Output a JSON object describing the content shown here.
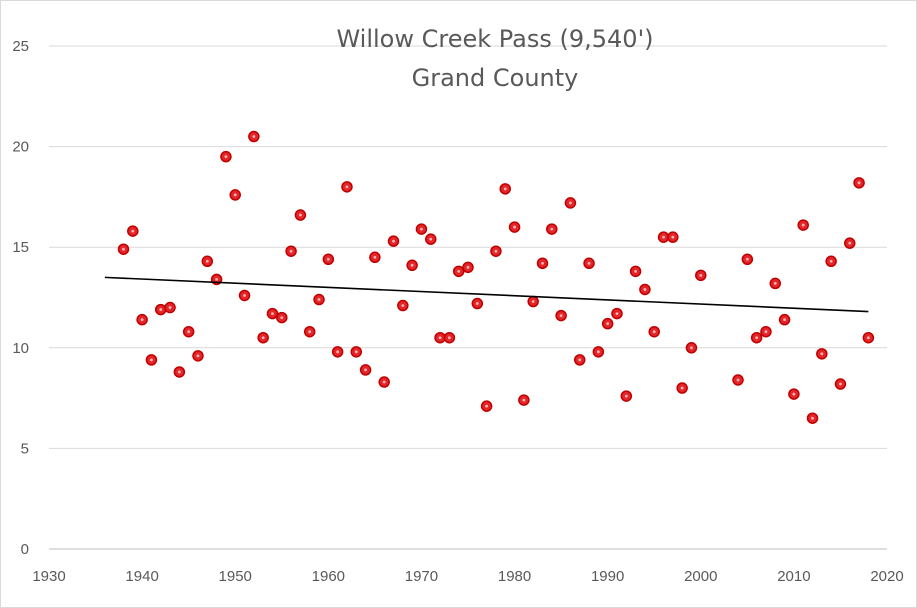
{
  "chart_data": {
    "type": "scatter",
    "title": [
      "Willow Creek Pass (9,540')",
      "Grand County"
    ],
    "xlabel": "",
    "ylabel": "",
    "xlim": [
      1930,
      2020
    ],
    "ylim": [
      0,
      25
    ],
    "x_ticks": [
      1930,
      1940,
      1950,
      1960,
      1970,
      1980,
      1990,
      2000,
      2010,
      2020
    ],
    "y_ticks": [
      0,
      5,
      10,
      15,
      20,
      25
    ],
    "grid": "horizontal",
    "legend": "none",
    "colors": {
      "points": "#e3262a",
      "point_edge": "#c00000",
      "trend": "#000000",
      "grid": "#d9d9d9"
    },
    "series": [
      {
        "points": [
          [
            1938,
            14.9
          ],
          [
            1939,
            15.8
          ],
          [
            1940,
            11.4
          ],
          [
            1941,
            9.4
          ],
          [
            1942,
            11.9
          ],
          [
            1943,
            12.0
          ],
          [
            1944,
            8.8
          ],
          [
            1945,
            10.8
          ],
          [
            1946,
            9.6
          ],
          [
            1947,
            14.3
          ],
          [
            1948,
            13.4
          ],
          [
            1949,
            19.5
          ],
          [
            1950,
            17.6
          ],
          [
            1951,
            12.6
          ],
          [
            1952,
            20.5
          ],
          [
            1953,
            10.5
          ],
          [
            1954,
            11.7
          ],
          [
            1955,
            11.5
          ],
          [
            1956,
            14.8
          ],
          [
            1957,
            16.6
          ],
          [
            1958,
            10.8
          ],
          [
            1959,
            12.4
          ],
          [
            1960,
            14.4
          ],
          [
            1961,
            9.8
          ],
          [
            1962,
            18.0
          ],
          [
            1963,
            9.8
          ],
          [
            1964,
            8.9
          ],
          [
            1965,
            14.5
          ],
          [
            1966,
            8.3
          ],
          [
            1967,
            15.3
          ],
          [
            1968,
            12.1
          ],
          [
            1969,
            14.1
          ],
          [
            1970,
            15.9
          ],
          [
            1971,
            15.4
          ],
          [
            1972,
            10.5
          ],
          [
            1973,
            10.5
          ],
          [
            1974,
            13.8
          ],
          [
            1975,
            14.0
          ],
          [
            1976,
            12.2
          ],
          [
            1977,
            7.1
          ],
          [
            1978,
            14.8
          ],
          [
            1979,
            17.9
          ],
          [
            1980,
            16.0
          ],
          [
            1981,
            7.4
          ],
          [
            1982,
            12.3
          ],
          [
            1983,
            14.2
          ],
          [
            1984,
            15.9
          ],
          [
            1985,
            11.6
          ],
          [
            1986,
            17.2
          ],
          [
            1987,
            9.4
          ],
          [
            1988,
            14.2
          ],
          [
            1989,
            9.8
          ],
          [
            1990,
            11.2
          ],
          [
            1991,
            11.7
          ],
          [
            1992,
            7.6
          ],
          [
            1993,
            13.8
          ],
          [
            1994,
            12.9
          ],
          [
            1995,
            10.8
          ],
          [
            1996,
            15.5
          ],
          [
            1997,
            15.5
          ],
          [
            1998,
            8.0
          ],
          [
            1999,
            10.0
          ],
          [
            2000,
            13.6
          ],
          [
            2004,
            8.4
          ],
          [
            2005,
            14.4
          ],
          [
            2006,
            10.5
          ],
          [
            2007,
            10.8
          ],
          [
            2008,
            13.2
          ],
          [
            2009,
            11.4
          ],
          [
            2010,
            7.7
          ],
          [
            2011,
            16.1
          ],
          [
            2012,
            6.5
          ],
          [
            2013,
            9.7
          ],
          [
            2014,
            14.3
          ],
          [
            2015,
            8.2
          ],
          [
            2016,
            15.2
          ],
          [
            2017,
            18.2
          ],
          [
            2018,
            10.5
          ]
        ]
      }
    ],
    "trendline": {
      "type": "linear",
      "x": [
        1936,
        2018
      ],
      "y": [
        13.5,
        11.8
      ]
    }
  }
}
